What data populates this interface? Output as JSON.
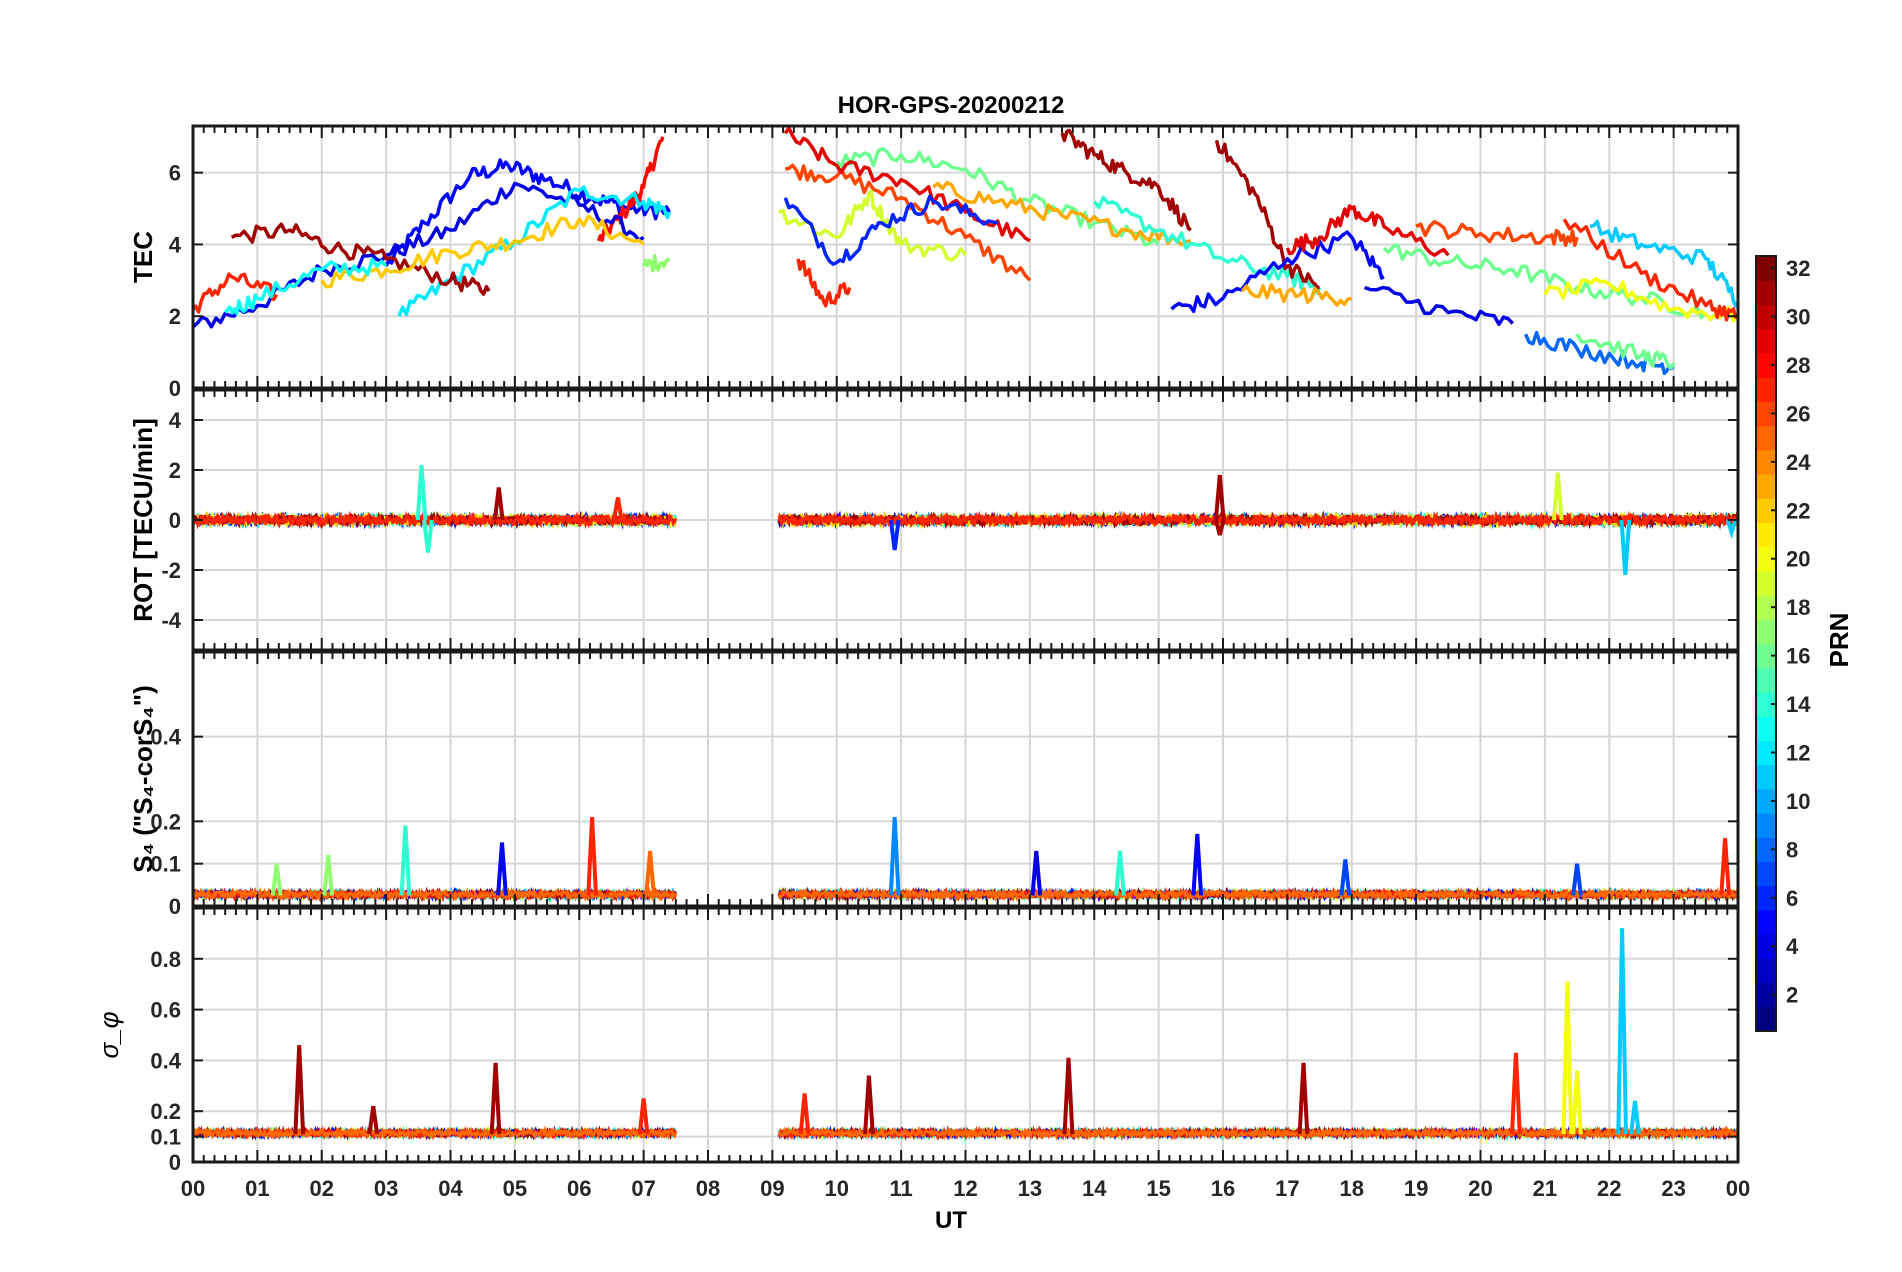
{
  "title": "HOR-GPS-20200212",
  "xlabel": "UT",
  "x_ticks": [
    "00",
    "01",
    "02",
    "03",
    "04",
    "05",
    "06",
    "07",
    "08",
    "09",
    "10",
    "11",
    "12",
    "13",
    "14",
    "15",
    "16",
    "17",
    "18",
    "19",
    "20",
    "21",
    "22",
    "23",
    "00"
  ],
  "colorbar": {
    "label": "PRN",
    "range": [
      1,
      32
    ],
    "ticks": [
      "2",
      "4",
      "6",
      "8",
      "10",
      "12",
      "14",
      "16",
      "18",
      "20",
      "22",
      "24",
      "26",
      "28",
      "30",
      "32"
    ],
    "colormap": "jet"
  },
  "chart_data": [
    {
      "type": "line",
      "panel": "tec",
      "ylabel": "TEC",
      "ylim": [
        0,
        7.3
      ],
      "y_ticks": [
        "0",
        "2",
        "4",
        "6"
      ],
      "xlim": [
        0,
        24
      ],
      "grid": true,
      "data_gap_hours": [
        7.5,
        9.1
      ],
      "series": [
        {
          "prn": 5,
          "x": [
            3.0,
            3.6,
            4.3,
            4.9,
            5.5,
            6.2,
            6.8,
            7.4
          ],
          "y": [
            3.4,
            4.6,
            5.9,
            6.2,
            5.8,
            5.3,
            5.0,
            4.9
          ]
        },
        {
          "prn": 28,
          "x": [
            6.3,
            6.7,
            7.0,
            7.3
          ],
          "y": [
            4.1,
            4.9,
            5.6,
            7.0
          ]
        },
        {
          "prn": 4,
          "x": [
            0.0,
            1.0,
            2.0,
            3.0,
            4.0,
            5.0,
            6.0,
            7.0
          ],
          "y": [
            1.7,
            2.3,
            3.3,
            3.7,
            4.4,
            5.7,
            5.1,
            4.2
          ]
        },
        {
          "prn": 12,
          "x": [
            3.2,
            4.0,
            5.0,
            6.0,
            7.0,
            7.4
          ],
          "y": [
            2.0,
            3.0,
            4.1,
            5.5,
            5.2,
            4.9
          ]
        },
        {
          "prn": 31,
          "x": [
            0.6,
            1.5,
            2.2,
            3.0,
            4.0,
            4.6
          ],
          "y": [
            4.2,
            4.4,
            3.9,
            3.6,
            3.0,
            2.7
          ]
        },
        {
          "prn": 22,
          "x": [
            2.0,
            3.0,
            4.0,
            5.0,
            6.0,
            7.0
          ],
          "y": [
            3.0,
            3.3,
            3.8,
            4.1,
            4.7,
            4.0
          ]
        },
        {
          "prn": 27,
          "x": [
            0.0,
            0.6,
            1.3
          ],
          "y": [
            2.2,
            3.1,
            2.6
          ]
        },
        {
          "prn": 13,
          "x": [
            0.5,
            1.0,
            2.0,
            3.0
          ],
          "y": [
            2.1,
            2.5,
            3.3,
            3.4
          ]
        },
        {
          "prn": 17,
          "x": [
            7.0,
            7.4
          ],
          "y": [
            3.4,
            3.6
          ]
        },
        {
          "prn": 26,
          "x": [
            9.2,
            10.0,
            11.0,
            12.0,
            13.0
          ],
          "y": [
            6.1,
            5.9,
            5.3,
            4.2,
            3.0
          ]
        },
        {
          "prn": 16,
          "x": [
            10.0,
            11.0,
            12.0,
            13.0,
            14.0,
            15.0
          ],
          "y": [
            6.3,
            6.5,
            6.1,
            5.2,
            4.6,
            4.0
          ]
        },
        {
          "prn": 29,
          "x": [
            9.2,
            10.0,
            11.0,
            12.0,
            13.0
          ],
          "y": [
            7.1,
            6.2,
            5.8,
            4.9,
            4.1
          ]
        },
        {
          "prn": 23,
          "x": [
            11.5,
            12.5,
            13.5,
            14.5,
            15.5
          ],
          "y": [
            5.6,
            5.2,
            4.8,
            4.4,
            4.1
          ]
        },
        {
          "prn": 19,
          "x": [
            9.1,
            10.0,
            10.5,
            11.0,
            12.0
          ],
          "y": [
            4.9,
            4.2,
            5.4,
            4.0,
            3.7
          ]
        },
        {
          "prn": 6,
          "x": [
            9.2,
            10.0,
            10.7,
            11.5,
            12.5
          ],
          "y": [
            5.3,
            3.5,
            4.6,
            5.2,
            4.6
          ]
        },
        {
          "prn": 27,
          "x": [
            9.4,
            9.8,
            10.2
          ],
          "y": [
            3.6,
            2.4,
            2.8
          ]
        },
        {
          "prn": 31,
          "x": [
            13.5,
            14.0,
            14.5,
            15.0,
            15.5
          ],
          "y": [
            7.1,
            6.5,
            6.0,
            5.6,
            4.4
          ]
        },
        {
          "prn": 14,
          "x": [
            14.0,
            15.0,
            16.0,
            17.0,
            17.5
          ],
          "y": [
            5.2,
            4.4,
            3.6,
            3.1,
            2.8
          ]
        },
        {
          "prn": 31,
          "x": [
            15.9,
            16.5,
            17.0,
            17.5
          ],
          "y": [
            6.9,
            5.4,
            3.4,
            2.8
          ]
        },
        {
          "prn": 5,
          "x": [
            15.2,
            16.0,
            17.0,
            18.0,
            18.5
          ],
          "y": [
            2.2,
            2.5,
            3.6,
            4.2,
            3.1
          ]
        },
        {
          "prn": 29,
          "x": [
            17.0,
            17.5,
            18.0,
            18.5,
            19.5
          ],
          "y": [
            3.9,
            4.2,
            5.0,
            4.5,
            3.7
          ]
        },
        {
          "prn": 16,
          "x": [
            18.5,
            19.5,
            20.5,
            21.5,
            22.5,
            23.5
          ],
          "y": [
            3.9,
            3.5,
            3.3,
            2.8,
            2.5,
            2.1
          ]
        },
        {
          "prn": 26,
          "x": [
            19.0,
            20.0,
            21.0,
            21.5
          ],
          "y": [
            4.5,
            4.3,
            4.2,
            4.2
          ]
        },
        {
          "prn": 11,
          "x": [
            21.7,
            22.5,
            23.5,
            24.0
          ],
          "y": [
            4.5,
            4.0,
            3.6,
            2.4
          ]
        },
        {
          "prn": 8,
          "x": [
            20.7,
            21.5,
            22.5,
            23.0
          ],
          "y": [
            1.5,
            1.1,
            0.7,
            0.6
          ]
        },
        {
          "prn": 16,
          "x": [
            21.5,
            22.5,
            23.0
          ],
          "y": [
            1.5,
            0.9,
            0.7
          ]
        },
        {
          "prn": 20,
          "x": [
            21.0,
            22.0,
            23.0,
            24.0
          ],
          "y": [
            2.6,
            2.9,
            2.2,
            2.0
          ]
        },
        {
          "prn": 27,
          "x": [
            21.3,
            22.5,
            23.5,
            24.0
          ],
          "y": [
            4.7,
            3.2,
            2.3,
            2.0
          ]
        },
        {
          "prn": 4,
          "x": [
            18.2,
            19.5,
            20.5
          ],
          "y": [
            2.8,
            2.1,
            1.8
          ]
        },
        {
          "prn": 23,
          "x": [
            16.3,
            17.2,
            18.0
          ],
          "y": [
            2.7,
            2.6,
            2.5
          ]
        }
      ]
    },
    {
      "type": "line",
      "panel": "rot",
      "ylabel": "ROT [TECU/min]",
      "ylim": [
        -5.2,
        5.2
      ],
      "y_ticks": [
        "-4",
        "-2",
        "0",
        "2",
        "4"
      ],
      "xlim": [
        0,
        24
      ],
      "grid": true,
      "baseline": 0,
      "noise_amplitude": 0.2,
      "spikes": [
        {
          "x": 3.55,
          "y": 2.2,
          "prn": 14
        },
        {
          "x": 3.65,
          "y": -1.3,
          "prn": 14
        },
        {
          "x": 4.75,
          "y": 1.3,
          "prn": 31
        },
        {
          "x": 6.6,
          "y": 0.9,
          "prn": 27
        },
        {
          "x": 10.9,
          "y": -1.2,
          "prn": 6
        },
        {
          "x": 15.95,
          "y": 1.8,
          "prn": 31
        },
        {
          "x": 15.95,
          "y": -0.6,
          "prn": 31
        },
        {
          "x": 21.2,
          "y": 1.9,
          "prn": 19
        },
        {
          "x": 22.25,
          "y": -2.2,
          "prn": 11
        },
        {
          "x": 23.9,
          "y": -0.5,
          "prn": 11
        }
      ]
    },
    {
      "type": "line",
      "panel": "s4",
      "ylabel": "S₄ (\"S₄-corS₄\")",
      "ylim": [
        0,
        0.6
      ],
      "y_ticks": [
        "0",
        "0.1",
        "0.2",
        "0.4"
      ],
      "xlim": [
        0,
        24
      ],
      "grid": true,
      "baseline": 0.025,
      "spikes": [
        {
          "x": 1.3,
          "y": 0.1,
          "prn": 17
        },
        {
          "x": 2.1,
          "y": 0.12,
          "prn": 17
        },
        {
          "x": 3.3,
          "y": 0.19,
          "prn": 14
        },
        {
          "x": 4.8,
          "y": 0.15,
          "prn": 5
        },
        {
          "x": 6.2,
          "y": 0.21,
          "prn": 27
        },
        {
          "x": 7.1,
          "y": 0.13,
          "prn": 25
        },
        {
          "x": 10.9,
          "y": 0.21,
          "prn": 9
        },
        {
          "x": 13.1,
          "y": 0.13,
          "prn": 4
        },
        {
          "x": 14.4,
          "y": 0.13,
          "prn": 14
        },
        {
          "x": 15.6,
          "y": 0.17,
          "prn": 5
        },
        {
          "x": 17.9,
          "y": 0.11,
          "prn": 7
        },
        {
          "x": 21.5,
          "y": 0.1,
          "prn": 7
        },
        {
          "x": 23.8,
          "y": 0.16,
          "prn": 27
        }
      ]
    },
    {
      "type": "line",
      "panel": "sigma_phi",
      "ylabel": "σ_φ",
      "ylim": [
        0,
        1.0
      ],
      "y_ticks": [
        "0",
        "0.1",
        "0.2",
        "0.4",
        "0.6",
        "0.8"
      ],
      "xlim": [
        0,
        24
      ],
      "grid": true,
      "baseline": 0.11,
      "spikes": [
        {
          "x": 1.65,
          "y": 0.46,
          "prn": 31
        },
        {
          "x": 2.8,
          "y": 0.22,
          "prn": 31
        },
        {
          "x": 4.7,
          "y": 0.39,
          "prn": 31
        },
        {
          "x": 7.0,
          "y": 0.25,
          "prn": 27
        },
        {
          "x": 9.5,
          "y": 0.27,
          "prn": 27
        },
        {
          "x": 10.5,
          "y": 0.34,
          "prn": 31
        },
        {
          "x": 13.6,
          "y": 0.41,
          "prn": 31
        },
        {
          "x": 17.25,
          "y": 0.39,
          "prn": 31
        },
        {
          "x": 20.55,
          "y": 0.43,
          "prn": 27
        },
        {
          "x": 21.35,
          "y": 0.71,
          "prn": 20
        },
        {
          "x": 21.5,
          "y": 0.36,
          "prn": 20
        },
        {
          "x": 22.2,
          "y": 0.92,
          "prn": 11
        },
        {
          "x": 22.4,
          "y": 0.24,
          "prn": 11
        }
      ]
    }
  ]
}
